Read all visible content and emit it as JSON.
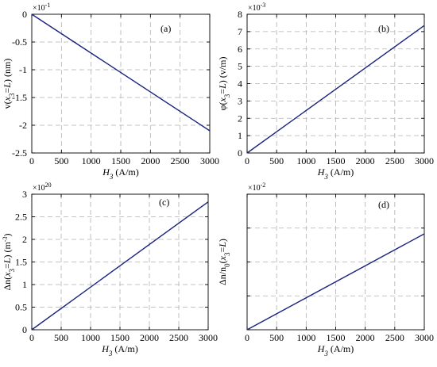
{
  "colors": {
    "line": "#1a237e",
    "grid": "#b0b0b0",
    "axis": "#000000"
  },
  "chart_data": [
    {
      "type": "line",
      "panel": "(a)",
      "x": [
        0,
        3000
      ],
      "series": [
        {
          "values": [
            0,
            -2.1
          ]
        }
      ],
      "xlim": [
        0,
        3000
      ],
      "ylim": [
        -2.5,
        0
      ],
      "xticks": [
        0,
        500,
        1000,
        1500,
        2000,
        2500,
        3000
      ],
      "yticks": [
        0,
        -0.5,
        -1,
        -1.5,
        -2,
        -2.5
      ],
      "ytick_labels": [
        "0",
        "-0.5",
        "-1",
        "-1.5",
        "-2",
        "-2.5"
      ],
      "xlabel": "H3 (A/m)",
      "ylabel": "v(x3=L) (nm)",
      "multiplier": "×10-1",
      "grid": true
    },
    {
      "type": "line",
      "panel": "(b)",
      "x": [
        0,
        3000
      ],
      "series": [
        {
          "values": [
            0,
            7.35
          ]
        }
      ],
      "xlim": [
        0,
        3000
      ],
      "ylim": [
        0,
        8
      ],
      "xticks": [
        0,
        500,
        1000,
        1500,
        2000,
        2500,
        3000
      ],
      "yticks": [
        0,
        1,
        2,
        3,
        4,
        5,
        6,
        7,
        8
      ],
      "ytick_labels": [
        "0",
        "1",
        "2",
        "3",
        "4",
        "5",
        "6",
        "7",
        "8"
      ],
      "xlabel": "H3 (A/m)",
      "ylabel": "φ(x3=L) (v/m)",
      "multiplier": "×10-3",
      "grid": true
    },
    {
      "type": "line",
      "panel": "(c)",
      "x": [
        0,
        3000
      ],
      "series": [
        {
          "values": [
            0,
            2.83
          ]
        }
      ],
      "xlim": [
        0,
        3000
      ],
      "ylim": [
        0,
        3
      ],
      "xticks": [
        0,
        500,
        1000,
        1500,
        2000,
        2500,
        3000
      ],
      "yticks": [
        0,
        0.5,
        1,
        1.5,
        2,
        2.5,
        3
      ],
      "ytick_labels": [
        "0",
        "0.5",
        "1",
        "1.5",
        "2",
        "2.5",
        "3"
      ],
      "xlabel": "H3 (A/m)",
      "ylabel": "Δn(x3=L) (m-3)",
      "multiplier": "×1020",
      "grid": true
    },
    {
      "type": "line",
      "panel": "(d)",
      "x": [
        0,
        3000
      ],
      "series": [
        {
          "values": [
            0,
            2.83
          ]
        }
      ],
      "xlim": [
        0,
        3000
      ],
      "ylim": [
        0,
        4
      ],
      "xticks": [
        0,
        500,
        1000,
        1500,
        2000,
        2500,
        3000
      ],
      "yticks": [
        0,
        1,
        2,
        3,
        4
      ],
      "ytick_labels": [
        "",
        "",
        "",
        "",
        ""
      ],
      "xlabel": "H3 (A/m)",
      "ylabel": "Δn/n0(x3=L)",
      "multiplier": "×10-2",
      "grid": true
    }
  ]
}
